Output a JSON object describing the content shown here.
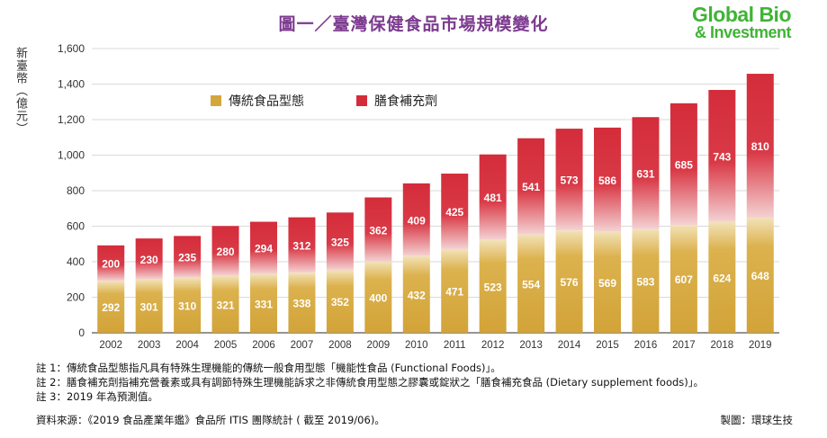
{
  "figure": {
    "title": "圖一／臺灣保健食品市場規模變化",
    "logo_line1": "Global Bio",
    "logo_line2": "& Investment",
    "notes": [
      "註 1：傳統食品型態指凡具有特殊生理機能的傳統一般食用型態「機能性食品 (Functional Foods)」。",
      "註 2：膳食補充劑指補充營養素或具有調節特殊生理機能訴求之非傳統食用型態之膠囊或錠狀之「膳食補充食品 (Dietary supplement foods)」。",
      "註 3：2019 年為預測值。"
    ],
    "source": "資料來源：《2019 食品產業年鑑》食品所 ITIS 團隊統計 ( 截至 2019/06)。",
    "credit": "製圖：環球生技"
  },
  "chart_data": {
    "type": "bar",
    "stacked": true,
    "ylabel": "新臺幣（億元）",
    "ylim": [
      0,
      1600
    ],
    "yticks": [
      "0",
      "200",
      "400",
      "600",
      "800",
      "1,000",
      "1,200",
      "1,400",
      "1,600"
    ],
    "ytick_values": [
      0,
      200,
      400,
      600,
      800,
      1000,
      1200,
      1400,
      1600
    ],
    "categories": [
      "2002",
      "2003",
      "2004",
      "2005",
      "2006",
      "2007",
      "2008",
      "2009",
      "2010",
      "2011",
      "2012",
      "2013",
      "2014",
      "2015",
      "2016",
      "2017",
      "2018",
      "2019"
    ],
    "series": [
      {
        "name": "傳統食品型態",
        "color": "#d4a73c",
        "values": [
          292,
          301,
          310,
          321,
          331,
          338,
          352,
          400,
          432,
          471,
          523,
          554,
          576,
          569,
          583,
          607,
          624,
          648
        ]
      },
      {
        "name": "膳食補充劑",
        "color": "#d42c3a",
        "values": [
          200,
          230,
          235,
          280,
          294,
          312,
          325,
          362,
          409,
          425,
          481,
          541,
          573,
          586,
          631,
          685,
          743,
          810
        ]
      }
    ],
    "grid": true,
    "legend": "top-left"
  }
}
